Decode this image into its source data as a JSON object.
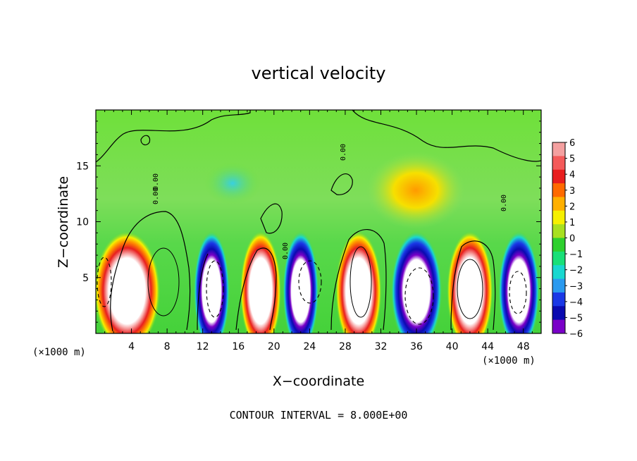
{
  "chart_data": {
    "type": "heatmap",
    "title": "vertical velocity",
    "xlabel": "X−coordinate",
    "ylabel": "Z−coordinate",
    "x_unit_left": "(×1000 m)",
    "x_unit_right": "(×1000 m)",
    "footer": "CONTOUR INTERVAL = 8.000E+00",
    "xlim": [
      0,
      50
    ],
    "ylim": [
      0,
      20
    ],
    "x_ticks": [
      "4",
      "8",
      "12",
      "16",
      "20",
      "24",
      "28",
      "32",
      "36",
      "40",
      "44",
      "48"
    ],
    "x_tick_values": [
      4,
      8,
      12,
      16,
      20,
      24,
      28,
      32,
      36,
      40,
      44,
      48
    ],
    "y_ticks": [
      "5",
      "10",
      "15"
    ],
    "y_tick_values": [
      5,
      10,
      15
    ],
    "contour_labels": [
      "0.00",
      "0.00",
      "0.00",
      "0.00",
      "0.00"
    ],
    "colorbar": {
      "labels": [
        "6",
        "5",
        "4",
        "3",
        "2",
        "1",
        "0",
        "−1",
        "−2",
        "−3",
        "−4",
        "−5",
        "−6"
      ],
      "values": [
        6,
        5,
        4,
        3,
        2,
        1,
        0,
        -1,
        -2,
        -3,
        -4,
        -5,
        -6
      ],
      "colors": [
        "#f4a0a0",
        "#f45a5a",
        "#e81e1e",
        "#ff6a00",
        "#ffb000",
        "#f6f000",
        "#a8e020",
        "#2ed02e",
        "#19e078",
        "#19d8d0",
        "#2a9aef",
        "#1a38e6",
        "#0a0ab0",
        "#7a00c8"
      ]
    },
    "cells": [
      {
        "x": 3.5,
        "width": 6.5,
        "sign": "up"
      },
      {
        "x": 13.0,
        "width": 3.5,
        "sign": "down"
      },
      {
        "x": 18.5,
        "width": 4.0,
        "sign": "up"
      },
      {
        "x": 23.0,
        "width": 3.5,
        "sign": "down"
      },
      {
        "x": 29.5,
        "width": 4.5,
        "sign": "up"
      },
      {
        "x": 36.0,
        "width": 5.0,
        "sign": "down"
      },
      {
        "x": 42.0,
        "width": 4.5,
        "sign": "up"
      },
      {
        "x": 47.5,
        "width": 4.0,
        "sign": "down"
      }
    ],
    "colors": {
      "background_field": "#5ad83a",
      "upper_field": "#8ae25a",
      "plot_border": "#000000"
    }
  }
}
